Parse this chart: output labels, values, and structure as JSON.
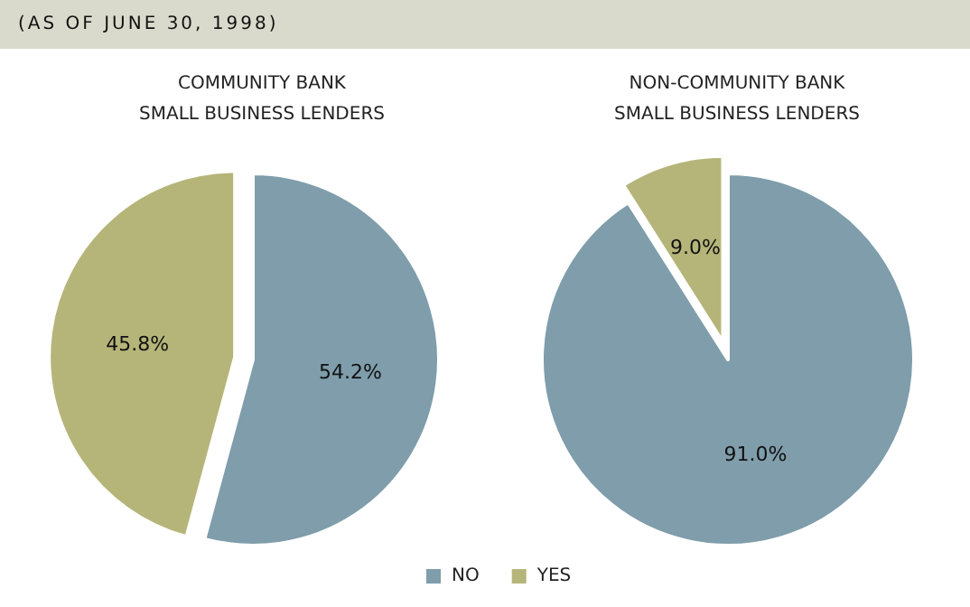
{
  "chart_data": [
    {
      "type": "pie",
      "subtitle": "(AS OF JUNE 30, 1998)",
      "title": "COMMUNITY BANK\nSMALL BUSINESS LENDERS",
      "categories": [
        null,
        null
      ],
      "values": [
        54.2,
        45.8
      ],
      "colors": [
        "#7f9dab",
        "#b5b57a"
      ],
      "value_labels": [
        "54.2%",
        "45.8%"
      ],
      "legend": false
    },
    {
      "type": "pie",
      "title": "NON-COMMUNITY BANK\nSMALL BUSINESS LENDERS",
      "categories": [
        "NO",
        "YES"
      ],
      "values": [
        91.0,
        9.0
      ],
      "colors": [
        "#7f9dab",
        "#b5b57a"
      ],
      "value_labels": [
        "91.0%",
        "9.0%"
      ],
      "legend": "bottom left"
    }
  ]
}
